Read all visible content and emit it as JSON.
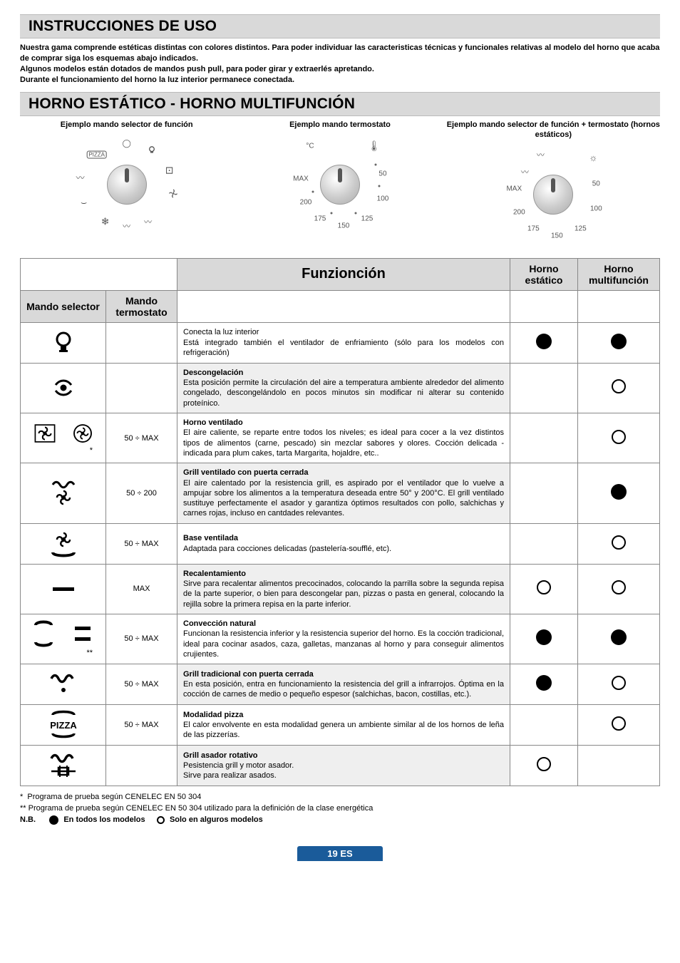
{
  "page": {
    "title_instructions": "INSTRUCCIONES DE USO",
    "intro": "Nuestra gama comprende estéticas distintas con colores distintos. Para poder individuar las caracteristicas técnicas y funcionales relativas al modelo del horno que acaba de comprar siga los esquemas abajo indicados.\nAlgunos modelos están dotados de mandos push pull, para poder girar y extraerlés apretando.\nDurante el funcionamiento del horno la luz interior permanece conectada.",
    "title_static": "HORNO ESTÁTICO - HORNO MULTIFUNCIÓN",
    "page_number": "19 ES"
  },
  "examples": {
    "selector_caption": "Ejemplo mando selector de función",
    "thermostat_caption": "Ejemplo mando termostato",
    "combo_caption": "Ejemplo mando selector de función + termostato (hornos estáticos)",
    "dial_unit": "°C",
    "dial_labels": [
      "MAX",
      "200",
      "175",
      "150",
      "125",
      "100",
      "50"
    ]
  },
  "table": {
    "header_function": "Funzionción",
    "header_static": "Horno estático",
    "header_multi": "Horno multifunción",
    "header_selector": "Mando selector",
    "header_thermostat": "Mando termostato",
    "rows": [
      {
        "icon": "light",
        "therm": "",
        "title": "",
        "body": "Conecta la luz interior\nEstá integrado también el ventilador de enfriamiento (sólo para los modelos con refrigeración)",
        "static": "filled",
        "multi": "filled",
        "grey": false
      },
      {
        "icon": "defrost",
        "therm": "",
        "title": "Descongelación",
        "body": "Esta posición permite la circulación del aire a temperatura ambiente alrededor del alimento congelado, descongelándolo en pocos minutos sin modificar ni alterar su contenido proteínico.",
        "static": "",
        "multi": "hollow",
        "grey": true
      },
      {
        "icon": "fan-oven",
        "therm": "50 ÷ MAX",
        "title": "Horno ventilado",
        "body": "El aire caliente, se reparte entre todos los niveles; es ideal para cocer a la vez distintos tipos de alimentos (carne, pescado) sin mezclar sabores y olores. Cocción delicada - indicada para plum cakes, tarta Margarita, hojaldre, etc..",
        "static": "",
        "multi": "hollow",
        "grey": false,
        "star": "*"
      },
      {
        "icon": "grill-fan",
        "therm": "50 ÷ 200",
        "title": "Grill ventilado con puerta cerrada",
        "body": "El aire calentado por la resistencia grill, es aspirado por el ventilador que lo vuelve a ampujar sobre los alimentos a la temperatura deseada entre 50° y 200°C. El grill ventilado sustituye perfectamente el asador y garantiza óptimos resultados con pollo, salchichas y carnes rojas, incluso en cantdades relevantes.",
        "static": "",
        "multi": "filled",
        "grey": true
      },
      {
        "icon": "base-fan",
        "therm": "50 ÷ MAX",
        "title": "Base ventilada",
        "body": "Adaptada para cocciones delicadas (pastelería-soufflé, etc).",
        "static": "",
        "multi": "hollow",
        "grey": false
      },
      {
        "icon": "bottom",
        "therm": "MAX",
        "title": "Recalentamiento",
        "body": "Sirve para recalentar alimentos precocinados, colocando la parrilla sobre la segunda repisa de la parte superior, o bien para descongelar pan, pizzas o pasta en general, colocando la rejilla sobre la primera repisa en la parte inferior.",
        "static": "hollow",
        "multi": "hollow",
        "grey": true
      },
      {
        "icon": "conventional",
        "therm": "50 ÷ MAX",
        "title": "Convección natural",
        "body": "Funcionan la resistencia inferior y la resistencia superior del horno. Es la cocción tradicional, ideal para cocinar asados, caza, galletas, manzanas al horno y para conseguir alimentos crujientes.",
        "static": "filled",
        "multi": "filled",
        "grey": false,
        "star": "**"
      },
      {
        "icon": "grill",
        "therm": "50 ÷ MAX",
        "title": "Grill tradicional con puerta cerrada",
        "body": "En esta posición, entra en funcionamiento la resistencia del grill a infrarrojos. Óptima en la cocción de carnes de medio o pequeño espesor (salchichas, bacon, costillas, etc.).",
        "static": "filled",
        "multi": "hollow",
        "grey": true
      },
      {
        "icon": "pizza",
        "therm": "50 ÷ MAX",
        "title": "Modalidad pizza",
        "body": "El calor envolvente en esta modalidad genera un ambiente similar al de los hornos de leña de las pizzerías.",
        "static": "",
        "multi": "hollow",
        "grey": false
      },
      {
        "icon": "rotisserie",
        "therm": "",
        "title": "Grill asador rotativo",
        "body": "Pesistencia grill y motor asador.\nSirve para realizar asados.",
        "static": "hollow",
        "multi": "",
        "grey": true
      }
    ]
  },
  "footnotes": {
    "f1": "Programa de prueba según CENELEC EN 50 304",
    "f2": "Programa de prueba según CENELEC EN 50 304 utilizado para la definición de la clase energética",
    "nb_label": "N.B.",
    "nb_all": "En todos los modelos",
    "nb_some": "Solo en alguros modelos"
  },
  "style": {
    "colors": {
      "section_bg": "#d9d9d9",
      "border": "#888888",
      "page_badge_bg": "#1a5b9a",
      "page_badge_fg": "#ffffff",
      "grey_row": "#efefef",
      "text": "#000000"
    },
    "fonts": {
      "family": "Arial, Helvetica, sans-serif",
      "body_pt": 11,
      "section_title_pt": 21,
      "table_header_pt": 20
    }
  }
}
